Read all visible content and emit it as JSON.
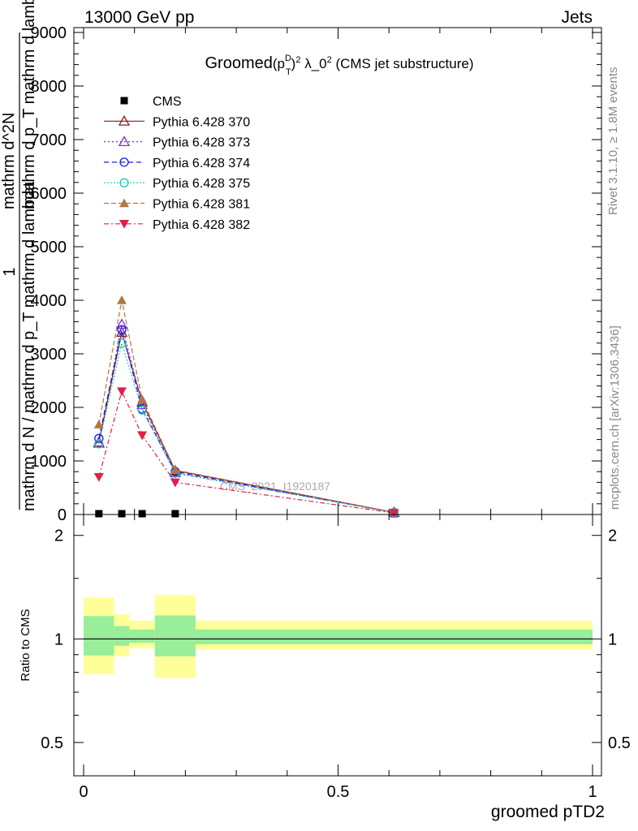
{
  "header": {
    "left": "13000 GeV pp",
    "right": "Jets"
  },
  "chart_data": [
    {
      "type": "line",
      "title_main": "Groomed",
      "title_p": "(p",
      "title_sup_d": "D",
      "title_sub_t": "T",
      "title_close": ")",
      "title_sup_2": "2",
      "title_lambda": " λ_0",
      "title_rest": " (CMS jet substructure)",
      "ylabel_numerator": "1",
      "ylabel_denominator": "mathrm d N / mathrm d p_T mathrm d lambda",
      "ylabel_overlay_top": "mathrm d^2N",
      "ylabel_overlay_mid": "mathrm d p_T mathrm d lambda",
      "ylim": [
        0,
        9000
      ],
      "xlim": [
        0,
        1
      ],
      "yticks": [
        0,
        1000,
        2000,
        3000,
        4000,
        5000,
        6000,
        7000,
        8000,
        9000
      ],
      "ytick_labels": [
        "0",
        "1000",
        "2000",
        "3000",
        "4000",
        "5000",
        "6000",
        "7000",
        "8000",
        "9000"
      ],
      "x": [
        0.03,
        0.075,
        0.115,
        0.18,
        0.61
      ],
      "watermark": "CMS_2021_I1920187",
      "series": [
        {
          "name": "CMS",
          "color": "#000000",
          "marker": "square",
          "values": [
            0,
            0,
            0,
            0,
            0
          ]
        },
        {
          "name": "Pythia 6.428 370",
          "color": "#8b1a1a",
          "marker": "triangle-open",
          "dash": "",
          "values": [
            1350,
            3400,
            2100,
            820,
            40
          ]
        },
        {
          "name": "Pythia 6.428 373",
          "color": "#7b2fd0",
          "marker": "triangle-open",
          "dash": "2,3",
          "values": [
            1330,
            3550,
            2050,
            780,
            38
          ]
        },
        {
          "name": "Pythia 6.428 374",
          "color": "#1a1ae6",
          "marker": "circle-open",
          "dash": "6,4",
          "values": [
            1420,
            3450,
            1970,
            800,
            40
          ]
        },
        {
          "name": "Pythia 6.428 375",
          "color": "#1ec9b4",
          "marker": "circle-open",
          "dash": "2,2",
          "values": [
            1320,
            3200,
            1950,
            770,
            38
          ]
        },
        {
          "name": "Pythia 6.428 381",
          "color": "#b07840",
          "marker": "triangle",
          "dash": "6,3",
          "values": [
            1680,
            4000,
            2150,
            830,
            42
          ]
        },
        {
          "name": "Pythia 6.428 382",
          "color": "#e0204a",
          "marker": "triangle-down",
          "dash": "6,3,2,3",
          "values": [
            700,
            2300,
            1480,
            600,
            30
          ]
        }
      ]
    },
    {
      "type": "area",
      "ylabel": "Ratio to CMS",
      "xlabel": "groomed pTD2",
      "ylim": [
        0.4,
        2.3
      ],
      "log_y": true,
      "yticks": [
        0.5,
        1,
        2
      ],
      "ytick_labels": [
        "0.5",
        "1",
        "2"
      ],
      "xticks": [
        0,
        0.5,
        1
      ],
      "xtick_labels": [
        "0",
        "0.5",
        "1"
      ],
      "bands": [
        {
          "x0": 0.0,
          "x1": 0.06,
          "yellow": [
            0.79,
            1.32
          ],
          "green": [
            0.895,
            1.165
          ]
        },
        {
          "x0": 0.06,
          "x1": 0.09,
          "yellow": [
            0.89,
            1.18
          ],
          "green": [
            0.955,
            1.09
          ]
        },
        {
          "x0": 0.09,
          "x1": 0.14,
          "yellow": [
            0.94,
            1.13
          ],
          "green": [
            0.975,
            1.065
          ]
        },
        {
          "x0": 0.14,
          "x1": 0.22,
          "yellow": [
            0.77,
            1.34
          ],
          "green": [
            0.89,
            1.17
          ]
        },
        {
          "x0": 0.22,
          "x1": 1.0,
          "yellow": [
            0.93,
            1.13
          ],
          "green": [
            0.965,
            1.065
          ]
        }
      ],
      "colors": {
        "yellow": "#ffff99",
        "green": "#99ee99"
      }
    }
  ],
  "side_labels": {
    "rivet": "Rivet 3.1.10, ≥ 1.8M events",
    "mcplots": "mcplots.cern.ch [arXiv:1306.3436]"
  }
}
